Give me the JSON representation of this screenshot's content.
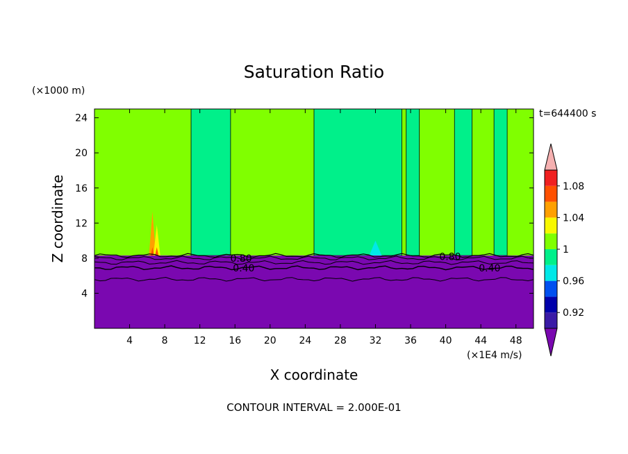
{
  "chart_data": {
    "type": "contour",
    "title": "Saturation Ratio",
    "xlabel": "X coordinate",
    "ylabel": "Z coordinate",
    "x_units": "(×1E4 m/s)",
    "y_units": "(×1000 m)",
    "time_label": "t=644400 s",
    "footer": "CONTOUR INTERVAL = 2.000E-01",
    "xlim": [
      0,
      50
    ],
    "ylim": [
      0,
      25
    ],
    "x_ticks": [
      4,
      8,
      12,
      16,
      20,
      24,
      28,
      32,
      36,
      40,
      44,
      48
    ],
    "y_ticks": [
      4,
      8,
      12,
      16,
      20,
      24
    ],
    "x_tick_labels": [
      "4",
      "8",
      "12",
      "16",
      "20",
      "24",
      "28",
      "32",
      "36",
      "40",
      "44",
      "48"
    ],
    "y_tick_labels": [
      "4",
      "8",
      "12",
      "16",
      "20",
      "24"
    ],
    "contour_labels": [
      {
        "text": "0.80",
        "x": 16.7,
        "z": 8.0
      },
      {
        "text": "0.40",
        "x": 17.0,
        "z": 6.9
      },
      {
        "text": "0.80",
        "x": 40.5,
        "z": 8.2
      },
      {
        "text": "0.40",
        "x": 45.0,
        "z": 6.9
      }
    ],
    "colorbar": {
      "levels": [
        0.9,
        0.92,
        0.94,
        0.96,
        0.98,
        1.0,
        1.02,
        1.04,
        1.06,
        1.08,
        1.1
      ],
      "tick_labels": [
        "0.92",
        "0.96",
        "1",
        "1.04",
        "1.08"
      ],
      "colors": [
        "#3a1aa6",
        "#0000aa",
        "#0050f0",
        "#00e8e8",
        "#00f08a",
        "#80ff00",
        "#f8f800",
        "#ffa000",
        "#ff5000",
        "#f02020"
      ],
      "under_color": "#7a08b0",
      "over_color": "#f5b0b0"
    },
    "regions": {
      "boundary_layer_top_z": 8.3,
      "background_value": 0.8,
      "upper_value": 1.01,
      "near_saturated_value": 0.99,
      "near_saturated_bands": [
        [
          11,
          15.5
        ],
        [
          25,
          35
        ],
        [
          35.5,
          37
        ],
        [
          41,
          43
        ],
        [
          45.5,
          47
        ]
      ],
      "supersaturated_spots": [
        {
          "x": 6.6,
          "z_top": 13.3,
          "value": 1.04
        },
        {
          "x": 7.1,
          "z_top": 11.8,
          "value": 1.03
        }
      ],
      "sub_saturated_spots": [
        {
          "x": 32.0,
          "z_top": 10.0,
          "value": 0.96
        }
      ]
    }
  }
}
